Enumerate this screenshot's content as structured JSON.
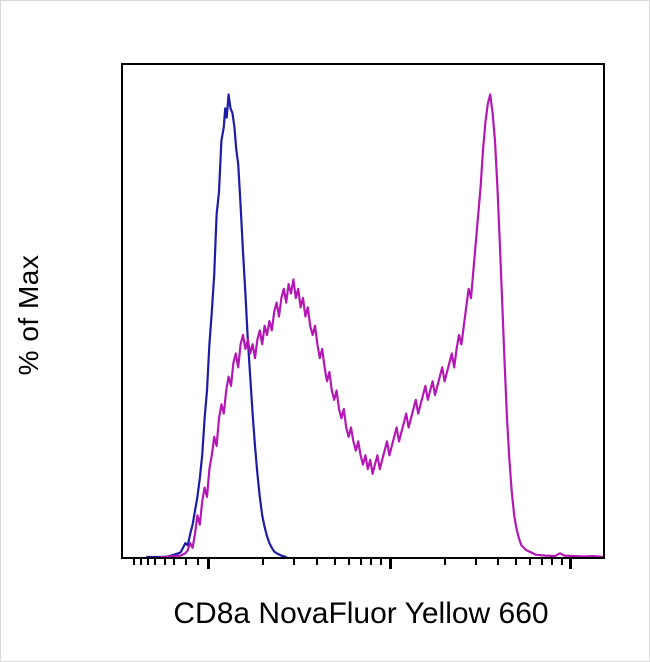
{
  "figure": {
    "background": "#ffffff",
    "plot_border_color": "#000000"
  },
  "chart_data": {
    "type": "line",
    "subtype": "flow-cytometry-histogram-overlay",
    "title": "",
    "xlabel": "CD8a NovaFluor Yellow 660",
    "ylabel": "% of Max",
    "ylim": [
      0,
      100
    ],
    "grid": false,
    "legend": "none",
    "x_axis": {
      "scale": "biexponential",
      "tick_labels": [],
      "major_ticks": [
        0.175,
        0.555,
        0.93
      ],
      "minor_ticks": [
        0.02,
        0.035,
        0.05,
        0.065,
        0.085,
        0.105,
        0.13,
        0.155,
        0.29,
        0.355,
        0.402,
        0.44,
        0.468,
        0.493,
        0.515,
        0.535,
        0.668,
        0.733,
        0.78,
        0.816,
        0.845,
        0.87,
        0.892,
        0.912
      ]
    },
    "series": [
      {
        "name": "blue_histogram",
        "color": "#1c1ca8",
        "points": [
          [
            5,
            0
          ],
          [
            9,
            0
          ],
          [
            10,
            0.3
          ],
          [
            11,
            0.6
          ],
          [
            12,
            1
          ],
          [
            12.5,
            2
          ],
          [
            13,
            3
          ],
          [
            13.5,
            2.5
          ],
          [
            14,
            5
          ],
          [
            14.5,
            7
          ],
          [
            15,
            10
          ],
          [
            15.5,
            13
          ],
          [
            16,
            17
          ],
          [
            16.5,
            22
          ],
          [
            17,
            30
          ],
          [
            17.5,
            36
          ],
          [
            18,
            46
          ],
          [
            18.5,
            53
          ],
          [
            19,
            61
          ],
          [
            19.5,
            74
          ],
          [
            20,
            79
          ],
          [
            20.5,
            90
          ],
          [
            21,
            93
          ],
          [
            21.3,
            97
          ],
          [
            21.6,
            95
          ],
          [
            22,
            100
          ],
          [
            22.4,
            97
          ],
          [
            22.8,
            96
          ],
          [
            23.2,
            93
          ],
          [
            23.6,
            88
          ],
          [
            24,
            85
          ],
          [
            24.5,
            76
          ],
          [
            25,
            66
          ],
          [
            25.5,
            57
          ],
          [
            26,
            47
          ],
          [
            26.5,
            39
          ],
          [
            27,
            31
          ],
          [
            27.5,
            24
          ],
          [
            28,
            18
          ],
          [
            28.5,
            13
          ],
          [
            29,
            9
          ],
          [
            29.5,
            6.5
          ],
          [
            30,
            4.5
          ],
          [
            30.5,
            3
          ],
          [
            31,
            2
          ],
          [
            31.5,
            1.2
          ],
          [
            32,
            0.8
          ],
          [
            33,
            0.3
          ],
          [
            34,
            0
          ]
        ]
      },
      {
        "name": "magenta_histogram",
        "color": "#b418b4",
        "points": [
          [
            8,
            0
          ],
          [
            12,
            0.3
          ],
          [
            13,
            0.8
          ],
          [
            13.5,
            1.5
          ],
          [
            14,
            3
          ],
          [
            14.5,
            2
          ],
          [
            15,
            5
          ],
          [
            15.5,
            9
          ],
          [
            16,
            7
          ],
          [
            16.5,
            12
          ],
          [
            17,
            15
          ],
          [
            17.5,
            13
          ],
          [
            18,
            19
          ],
          [
            18.5,
            22
          ],
          [
            19,
            26
          ],
          [
            19.5,
            24
          ],
          [
            20,
            30
          ],
          [
            20.5,
            33
          ],
          [
            21,
            31
          ],
          [
            21.5,
            36
          ],
          [
            22,
            39
          ],
          [
            22.5,
            37
          ],
          [
            23,
            42
          ],
          [
            23.5,
            44
          ],
          [
            24,
            41
          ],
          [
            24.5,
            46
          ],
          [
            25,
            48
          ],
          [
            25.5,
            45
          ],
          [
            26,
            47
          ],
          [
            26.5,
            44
          ],
          [
            27,
            46
          ],
          [
            27.5,
            43
          ],
          [
            28,
            47
          ],
          [
            28.5,
            49
          ],
          [
            29,
            46
          ],
          [
            29.5,
            50
          ],
          [
            30,
            48
          ],
          [
            30.5,
            51
          ],
          [
            31,
            49
          ],
          [
            31.5,
            53
          ],
          [
            32,
            55
          ],
          [
            32.5,
            52
          ],
          [
            33,
            56
          ],
          [
            33.5,
            58
          ],
          [
            34,
            55
          ],
          [
            34.5,
            59
          ],
          [
            35,
            57
          ],
          [
            35.5,
            60
          ],
          [
            36,
            56
          ],
          [
            36.5,
            58
          ],
          [
            37,
            54
          ],
          [
            37.5,
            56
          ],
          [
            38,
            52
          ],
          [
            38.5,
            54
          ],
          [
            39,
            50
          ],
          [
            39.5,
            48
          ],
          [
            40,
            50
          ],
          [
            40.5,
            46
          ],
          [
            41,
            43
          ],
          [
            41.5,
            45
          ],
          [
            42,
            41
          ],
          [
            42.5,
            38
          ],
          [
            43,
            40
          ],
          [
            43.5,
            36
          ],
          [
            44,
            34
          ],
          [
            44.5,
            36
          ],
          [
            45,
            32
          ],
          [
            45.5,
            30
          ],
          [
            46,
            32
          ],
          [
            46.5,
            28
          ],
          [
            47,
            26
          ],
          [
            47.5,
            28
          ],
          [
            48,
            25
          ],
          [
            48.5,
            23
          ],
          [
            49,
            25
          ],
          [
            49.5,
            22
          ],
          [
            50,
            20
          ],
          [
            50.5,
            22
          ],
          [
            51,
            19
          ],
          [
            51.5,
            21
          ],
          [
            52,
            18
          ],
          [
            52.5,
            20
          ],
          [
            53,
            22
          ],
          [
            53.5,
            19
          ],
          [
            54,
            21
          ],
          [
            54.5,
            23
          ],
          [
            55,
            25
          ],
          [
            55.5,
            22
          ],
          [
            56,
            24
          ],
          [
            56.5,
            26
          ],
          [
            57,
            28
          ],
          [
            57.5,
            25
          ],
          [
            58,
            27
          ],
          [
            58.5,
            29
          ],
          [
            59,
            31
          ],
          [
            59.5,
            28
          ],
          [
            60,
            30
          ],
          [
            60.5,
            32
          ],
          [
            61,
            34
          ],
          [
            61.5,
            31
          ],
          [
            62,
            33
          ],
          [
            62.5,
            35
          ],
          [
            63,
            37
          ],
          [
            63.5,
            34
          ],
          [
            64,
            36
          ],
          [
            64.5,
            38
          ],
          [
            65,
            35
          ],
          [
            65.5,
            37
          ],
          [
            66,
            39
          ],
          [
            66.5,
            41
          ],
          [
            67,
            38
          ],
          [
            67.5,
            40
          ],
          [
            68,
            42
          ],
          [
            68.5,
            44
          ],
          [
            69,
            41
          ],
          [
            69.5,
            45
          ],
          [
            70,
            48
          ],
          [
            70.5,
            46
          ],
          [
            71,
            50
          ],
          [
            71.5,
            54
          ],
          [
            72,
            58
          ],
          [
            72.5,
            56
          ],
          [
            73,
            62
          ],
          [
            73.5,
            68
          ],
          [
            74,
            74
          ],
          [
            74.5,
            80
          ],
          [
            75,
            88
          ],
          [
            75.5,
            94
          ],
          [
            76,
            98
          ],
          [
            76.5,
            100
          ],
          [
            77,
            96
          ],
          [
            77.5,
            90
          ],
          [
            78,
            80
          ],
          [
            78.5,
            68
          ],
          [
            79,
            55
          ],
          [
            79.5,
            42
          ],
          [
            80,
            30
          ],
          [
            80.5,
            21
          ],
          [
            81,
            14
          ],
          [
            81.5,
            9
          ],
          [
            82,
            6
          ],
          [
            82.5,
            4
          ],
          [
            83,
            2.5
          ],
          [
            84,
            1.5
          ],
          [
            85,
            1
          ],
          [
            86,
            0.5
          ],
          [
            88,
            0.3
          ],
          [
            90,
            0.2
          ],
          [
            91,
            0.8
          ],
          [
            92,
            0.3
          ],
          [
            94,
            0.2
          ],
          [
            96,
            0.1
          ],
          [
            98,
            0.2
          ],
          [
            100,
            0
          ]
        ]
      }
    ]
  }
}
